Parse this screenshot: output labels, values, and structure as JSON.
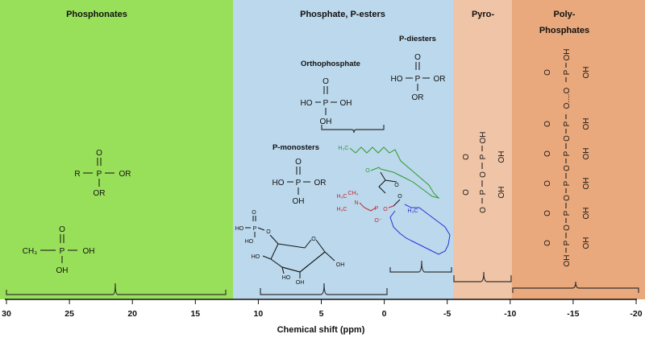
{
  "colors": {
    "phosphonates": "#99e05a",
    "phosphate_esters": "#bcd8ec",
    "pyro": "#f0c4a6",
    "polyphosphates": "#e9a97c",
    "lipid_green": "#2f9a2f",
    "choline_red": "#c2262e",
    "chain_blue": "#2433d6"
  },
  "regions": {
    "phosphonates": "Phosphonates",
    "phosphate_esters": "Phosphate, P-esters",
    "pyro": "Pyro-",
    "poly_line1": "Poly-",
    "poly_line2": "Phosphates"
  },
  "subgroups": {
    "orthophosphate": "Orthophosphate",
    "p_diesters": "P-diesters",
    "p_monosters": "P-monosters"
  },
  "chem": {
    "O": "O",
    "P": "P",
    "OH": "OH",
    "HO": "HO",
    "OR": "OR",
    "R": "R",
    "CH": "CH",
    "three": "3",
    "H3C": "H₃C",
    "CH3": "CH₃",
    "N": "N",
    "O_minus": "O⁻",
    "OH_dots": "O....O"
  },
  "axis": {
    "label": "Chemical shift (ppm)",
    "ticks": [
      "30",
      "25",
      "20",
      "15",
      "10",
      "5",
      "0",
      "-5",
      "-10",
      "-15",
      "-20"
    ]
  }
}
